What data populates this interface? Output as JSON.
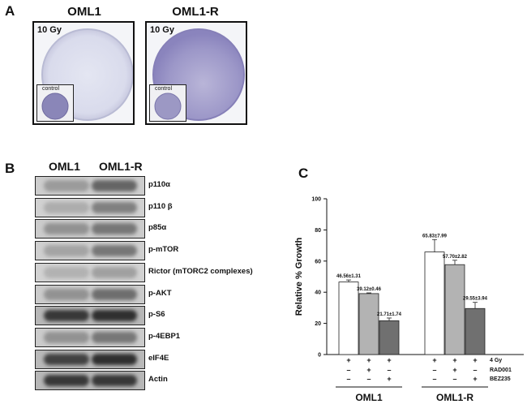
{
  "panel_a": {
    "letter": "A",
    "plates": [
      {
        "title": "OML1",
        "dose": "10 Gy",
        "inset_label": "control"
      },
      {
        "title": "OML1-R",
        "dose": "10 Gy",
        "inset_label": "control"
      }
    ]
  },
  "panel_b": {
    "letter": "B",
    "lanes": [
      "OML1",
      "OML1-R"
    ],
    "blots": [
      {
        "label": "p110α",
        "lane1_intensity": 0.25,
        "lane2_intensity": 0.55
      },
      {
        "label": "p110 β",
        "lane1_intensity": 0.15,
        "lane2_intensity": 0.4
      },
      {
        "label": "p85α",
        "lane1_intensity": 0.3,
        "lane2_intensity": 0.45
      },
      {
        "label": "p-mTOR",
        "lane1_intensity": 0.2,
        "lane2_intensity": 0.45
      },
      {
        "label": "Rictor (mTORC2 complexes)",
        "lane1_intensity": 0.12,
        "lane2_intensity": 0.22
      },
      {
        "label": "p-AKT",
        "lane1_intensity": 0.3,
        "lane2_intensity": 0.5
      },
      {
        "label": "p-S6",
        "lane1_intensity": 0.8,
        "lane2_intensity": 0.85
      },
      {
        "label": "p-4EBP1",
        "lane1_intensity": 0.3,
        "lane2_intensity": 0.45
      },
      {
        "label": "eIF4E",
        "lane1_intensity": 0.75,
        "lane2_intensity": 0.85
      },
      {
        "label": "Actin",
        "lane1_intensity": 0.8,
        "lane2_intensity": 0.8
      }
    ]
  },
  "panel_c": {
    "letter": "C",
    "chart_data": {
      "type": "bar",
      "ylabel": "Relative % Growth",
      "ylim": [
        0,
        100
      ],
      "yticks": [
        0,
        20,
        40,
        60,
        80,
        100
      ],
      "groups": [
        {
          "name": "OML1",
          "bars": [
            {
              "value": 46.56,
              "error": 1.31,
              "label": "46.56±1.31",
              "color": "#ffffff"
            },
            {
              "value": 39.12,
              "error": 0.46,
              "label": "39.12±0.46",
              "color": "#b3b3b3"
            },
            {
              "value": 21.71,
              "error": 1.74,
              "label": "21.71±1.74",
              "color": "#707070"
            }
          ]
        },
        {
          "name": "OML1-R",
          "bars": [
            {
              "value": 65.83,
              "error": 7.99,
              "label": "65.83±7.99",
              "color": "#ffffff"
            },
            {
              "value": 57.7,
              "error": 2.82,
              "label": "57.70±2.82",
              "color": "#b3b3b3"
            },
            {
              "value": 29.55,
              "error": 3.94,
              "label": "29.55±3.94",
              "color": "#707070"
            }
          ]
        }
      ],
      "treatments": [
        {
          "name": "4 Gy",
          "signs": [
            "+",
            "+",
            "+",
            "+",
            "+",
            "+"
          ]
        },
        {
          "name": "RAD001",
          "signs": [
            "–",
            "+",
            "–",
            "–",
            "+",
            "–"
          ]
        },
        {
          "name": "BEZ235",
          "signs": [
            "–",
            "–",
            "+",
            "–",
            "–",
            "+"
          ]
        }
      ]
    }
  }
}
